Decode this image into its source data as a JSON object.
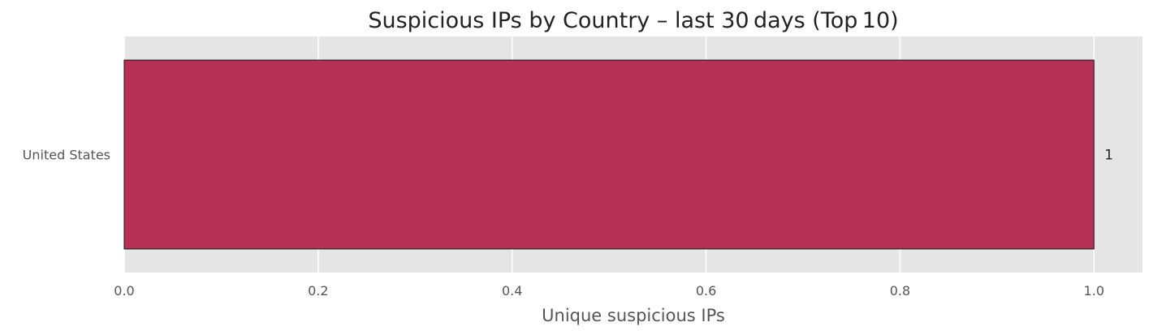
{
  "chart_data": {
    "type": "bar",
    "orientation": "horizontal",
    "title": "Suspicious IPs by Country – last 30 days (Top 10)",
    "xlabel": "Unique suspicious IPs",
    "ylabel": "",
    "categories": [
      "United States"
    ],
    "values": [
      1
    ],
    "data_labels": [
      "1"
    ],
    "xlim": [
      0,
      1.05
    ],
    "xticks": [
      0.0,
      0.2,
      0.4,
      0.6,
      0.8,
      1.0
    ],
    "xtick_labels": [
      "0.0",
      "0.2",
      "0.4",
      "0.6",
      "0.8",
      "1.0"
    ],
    "grid": true,
    "colors": {
      "bar": "#b53157",
      "bar_edge": "#111111",
      "plot_background": "#e5e5e5",
      "grid": "#ffffff"
    }
  }
}
